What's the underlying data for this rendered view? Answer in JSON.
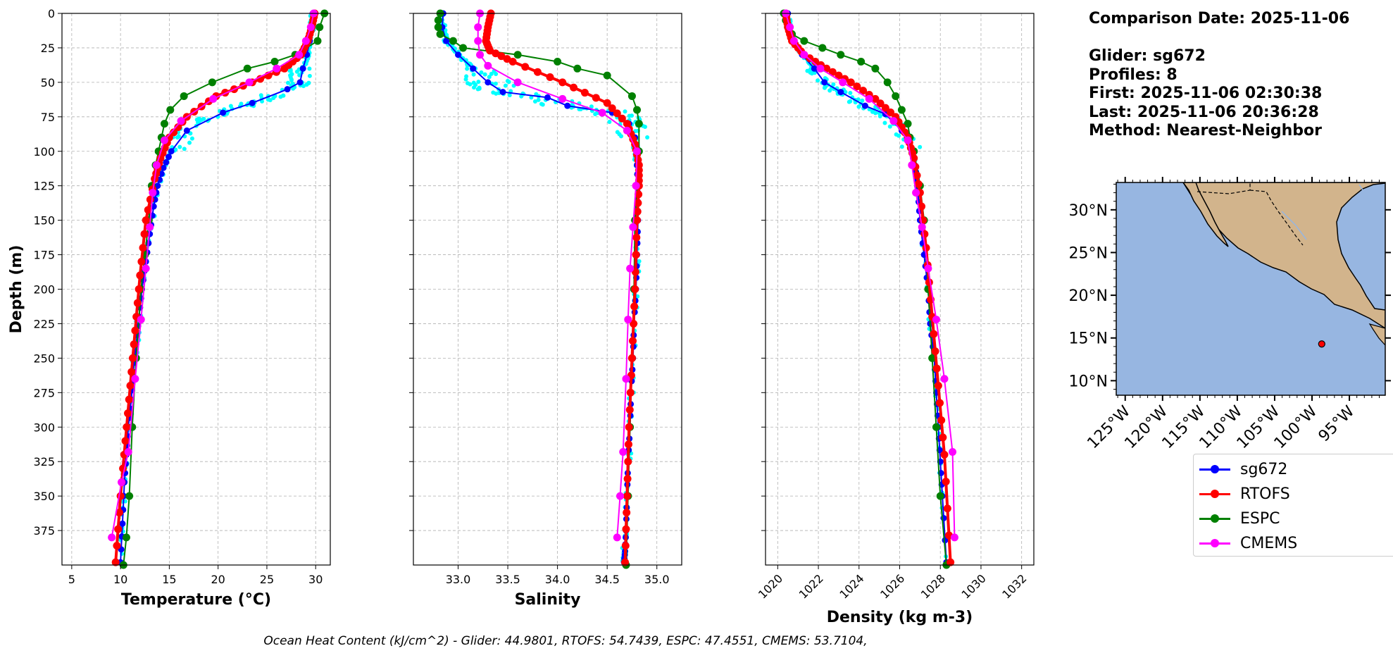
{
  "chart_data": [
    {
      "type": "line",
      "xlabel": "Temperature (°C)",
      "ylabel": "Depth (m)",
      "xlim": [
        4,
        31.5
      ],
      "ylim": [
        400,
        0
      ],
      "xticks": [
        5,
        10,
        15,
        20,
        25,
        30
      ],
      "yticks": [
        0,
        25,
        50,
        75,
        100,
        125,
        150,
        175,
        200,
        225,
        250,
        275,
        300,
        325,
        350,
        375
      ],
      "grid": true,
      "series": [
        {
          "name": "sg672",
          "color": "#0000ff",
          "x": [
            29.7,
            29.6,
            29.4,
            29.1,
            28.7,
            28.4,
            27.1,
            23.5,
            20.5,
            16.8,
            15.2,
            14.4,
            13.8,
            13.4,
            13.0,
            12.6,
            12.2,
            11.9,
            11.6,
            11.3,
            11.1,
            10.8,
            10.6,
            10.4,
            10.2,
            10.0
          ],
          "y": [
            0,
            10,
            20,
            30,
            40,
            50,
            55,
            65,
            72,
            85,
            100,
            112,
            125,
            140,
            160,
            180,
            200,
            220,
            240,
            260,
            280,
            300,
            320,
            340,
            370,
            398
          ]
        },
        {
          "name": "RTOFS",
          "color": "#ff0000",
          "x": [
            29.9,
            29.6,
            29.2,
            28.5,
            26.8,
            23.5,
            19.8,
            16.8,
            15.0,
            14.1,
            13.5,
            12.6,
            12.0,
            11.5,
            11.0,
            10.5,
            10.0,
            9.5
          ],
          "y": [
            0,
            10,
            20,
            30,
            40,
            50,
            60,
            75,
            90,
            105,
            120,
            150,
            190,
            230,
            270,
            310,
            350,
            398
          ]
        },
        {
          "name": "ESPC",
          "color": "#008000",
          "x": [
            30.9,
            30.4,
            30.2,
            27.9,
            25.8,
            23.0,
            19.4,
            16.5,
            15.1,
            14.5,
            14.2,
            13.9,
            13.6,
            13.2,
            12.9,
            12.5,
            12.1,
            11.6,
            11.2,
            10.9,
            10.6,
            10.3
          ],
          "y": [
            0,
            10,
            20,
            30,
            35,
            40,
            50,
            60,
            70,
            80,
            90,
            100,
            110,
            125,
            150,
            175,
            200,
            250,
            300,
            350,
            380,
            400
          ]
        },
        {
          "name": "CMEMS",
          "color": "#ff00ff",
          "x": [
            29.8,
            29.5,
            29.0,
            28.3,
            26.0,
            23.2,
            19.5,
            16.2,
            14.5,
            13.7,
            13.3,
            13.0,
            12.6,
            12.1,
            11.5,
            10.8,
            10.1,
            9.1
          ],
          "y": [
            0,
            10,
            20,
            30,
            40,
            50,
            62,
            78,
            92,
            110,
            130,
            155,
            185,
            222,
            265,
            318,
            340,
            380
          ]
        }
      ]
    },
    {
      "type": "line",
      "xlabel": "Salinity",
      "ylabel": "",
      "xlim": [
        32.55,
        35.25
      ],
      "ylim": [
        400,
        0
      ],
      "xticks": [
        33.0,
        33.5,
        34.0,
        34.5,
        35.0
      ],
      "grid": true,
      "series": [
        {
          "name": "sg672",
          "color": "#0000ff",
          "x": [
            32.85,
            32.84,
            32.88,
            33.0,
            33.15,
            33.3,
            33.45,
            33.9,
            34.1,
            34.55,
            34.72,
            34.78,
            34.8,
            34.81,
            34.81,
            34.8,
            34.79,
            34.77,
            34.76,
            34.74,
            34.73,
            34.71,
            34.7,
            34.69,
            34.68,
            34.67
          ],
          "y": [
            0,
            10,
            20,
            30,
            40,
            50,
            57,
            61,
            67,
            72,
            80,
            90,
            110,
            130,
            150,
            175,
            200,
            225,
            250,
            275,
            300,
            325,
            350,
            375,
            390,
            398
          ]
        },
        {
          "name": "RTOFS",
          "color": "#ff0000",
          "x": [
            33.33,
            33.3,
            33.28,
            33.32,
            33.55,
            34.05,
            34.5,
            34.7,
            34.78,
            34.82,
            34.82,
            34.8,
            34.78,
            34.75,
            34.72,
            34.7,
            34.68
          ],
          "y": [
            0,
            10,
            20,
            27,
            35,
            50,
            65,
            80,
            95,
            110,
            125,
            150,
            200,
            250,
            300,
            350,
            398
          ]
        },
        {
          "name": "ESPC",
          "color": "#008000",
          "x": [
            32.82,
            32.8,
            32.8,
            32.82,
            32.95,
            33.05,
            33.6,
            34.0,
            34.2,
            34.5,
            34.75,
            34.8,
            34.82,
            34.82,
            34.8,
            34.78,
            34.77,
            34.75,
            34.73,
            34.71,
            34.69
          ],
          "y": [
            0,
            5,
            10,
            15,
            20,
            25,
            30,
            35,
            40,
            45,
            60,
            70,
            80,
            100,
            125,
            150,
            200,
            250,
            300,
            350,
            400
          ]
        },
        {
          "name": "CMEMS",
          "color": "#ff00ff",
          "x": [
            33.22,
            33.2,
            33.2,
            33.22,
            33.3,
            33.6,
            34.05,
            34.45,
            34.7,
            34.8,
            34.79,
            34.76,
            34.73,
            34.71,
            34.69,
            34.66,
            34.63,
            34.6
          ],
          "y": [
            0,
            10,
            20,
            30,
            38,
            50,
            62,
            72,
            85,
            100,
            125,
            155,
            185,
            222,
            265,
            318,
            350,
            380
          ]
        }
      ]
    },
    {
      "type": "line",
      "xlabel": "Density (kg m-3)",
      "ylabel": "",
      "xlim": [
        1019.4,
        1032.6
      ],
      "ylim": [
        400,
        0
      ],
      "xticks": [
        1020,
        1022,
        1024,
        1026,
        1028,
        1030,
        1032
      ],
      "grid": true,
      "series": [
        {
          "name": "sg672",
          "color": "#0000ff",
          "x": [
            1020.5,
            1020.6,
            1020.8,
            1021.2,
            1021.8,
            1022.3,
            1023.1,
            1024.3,
            1025.3,
            1026.1,
            1026.6,
            1026.8,
            1026.9,
            1027.0,
            1027.2,
            1027.4,
            1027.5,
            1027.7,
            1027.8,
            1027.9,
            1028.0,
            1028.1,
            1028.3
          ],
          "y": [
            0,
            10,
            20,
            30,
            40,
            50,
            57,
            67,
            73,
            85,
            100,
            115,
            130,
            150,
            175,
            200,
            225,
            250,
            275,
            300,
            325,
            350,
            398
          ]
        },
        {
          "name": "RTOFS",
          "color": "#ff0000",
          "x": [
            1020.4,
            1020.5,
            1020.7,
            1021.3,
            1022.4,
            1023.6,
            1024.8,
            1025.8,
            1026.4,
            1026.7,
            1027.0,
            1027.3,
            1027.6,
            1027.9,
            1028.2,
            1028.5
          ],
          "y": [
            0,
            10,
            20,
            30,
            40,
            50,
            62,
            75,
            90,
            105,
            130,
            170,
            220,
            270,
            320,
            398
          ]
        },
        {
          "name": "ESPC",
          "color": "#008000",
          "x": [
            1020.3,
            1020.4,
            1020.5,
            1020.7,
            1021.3,
            1022.2,
            1023.1,
            1024.1,
            1024.8,
            1025.4,
            1025.8,
            1026.1,
            1026.4,
            1026.5,
            1026.7,
            1027.0,
            1027.2,
            1027.4,
            1027.6,
            1027.8,
            1028.0,
            1028.3
          ],
          "y": [
            0,
            5,
            10,
            15,
            20,
            25,
            30,
            35,
            40,
            50,
            60,
            70,
            80,
            90,
            100,
            125,
            150,
            200,
            250,
            300,
            350,
            400
          ]
        },
        {
          "name": "CMEMS",
          "color": "#ff00ff",
          "x": [
            1020.4,
            1020.6,
            1020.8,
            1021.3,
            1022.1,
            1023.2,
            1024.5,
            1025.7,
            1026.4,
            1026.6,
            1026.8,
            1027.1,
            1027.4,
            1027.8,
            1028.2,
            1028.6,
            1028.7
          ],
          "y": [
            0,
            10,
            20,
            30,
            40,
            50,
            62,
            78,
            92,
            110,
            130,
            155,
            185,
            222,
            265,
            318,
            380
          ]
        }
      ]
    }
  ],
  "info": {
    "comparison_date": "Comparison Date: 2025-11-06",
    "glider": "Glider: sg672",
    "profiles": "Profiles: 8",
    "first": "First: 2025-11-06 02:30:38",
    "last": "Last: 2025-11-06 20:36:28",
    "method": "Method: Nearest-Neighbor"
  },
  "map": {
    "lat_ticks": [
      "30°N",
      "25°N",
      "20°N",
      "15°N",
      "10°N"
    ],
    "lon_ticks": [
      "125°W",
      "120°W",
      "115°W",
      "110°W",
      "105°W",
      "100°W",
      "95°W"
    ],
    "ocean_color": "#97b6e1",
    "land_color": "#d2b48c",
    "glider_marker": {
      "lat": 14.3,
      "lon": -98.7
    }
  },
  "legend": [
    "sg672",
    "RTOFS",
    "ESPC",
    "CMEMS"
  ],
  "colors": {
    "sg672": "#0000ff",
    "RTOFS": "#ff0000",
    "ESPC": "#008000",
    "CMEMS": "#ff00ff",
    "glider_raw": "#00ffff"
  },
  "footer": "Ocean Heat Content (kJ/cm^2) - Glider: 44.9801,  RTOFS: 54.7439,  ESPC: 47.4551,  CMEMS: 53.7104,"
}
